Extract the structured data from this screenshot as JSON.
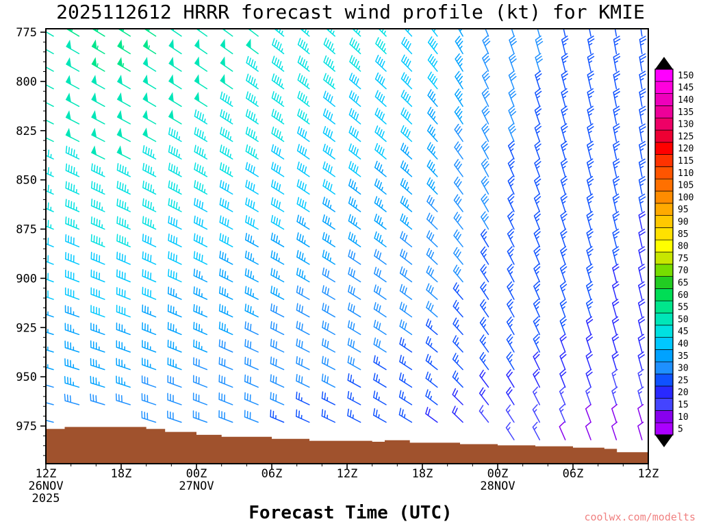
{
  "title": "2025112612 HRRR forecast wind profile (kt) for KMIE",
  "x_axis_title": "Forecast Time (UTC)",
  "watermark": "coolwx.com/modelts",
  "chart_data": {
    "type": "wind-barb-time-height",
    "model": "HRRR",
    "init_time_utc": "2025112612",
    "station": "KMIE",
    "units": "kt",
    "time_axis": {
      "hours_range": [
        0,
        48
      ],
      "ticks": [
        {
          "hour": 0,
          "label": "12Z",
          "date": "26NOV",
          "year": "2025"
        },
        {
          "hour": 6,
          "label": "18Z"
        },
        {
          "hour": 12,
          "label": "00Z",
          "date": "27NOV"
        },
        {
          "hour": 18,
          "label": "06Z"
        },
        {
          "hour": 24,
          "label": "12Z"
        },
        {
          "hour": 30,
          "label": "18Z"
        },
        {
          "hour": 36,
          "label": "00Z",
          "date": "28NOV"
        },
        {
          "hour": 42,
          "label": "06Z"
        },
        {
          "hour": 48,
          "label": "12Z"
        }
      ],
      "minor_step_hours": 2
    },
    "pressure_axis": {
      "ticks_hpa": [
        775,
        800,
        825,
        850,
        875,
        900,
        925,
        950,
        975
      ],
      "minor_step_hpa": 5,
      "top_hpa": 773,
      "bottom_hpa": 994
    },
    "sample_times_hours": [
      0,
      6,
      12,
      18,
      24,
      30,
      36,
      42,
      48
    ],
    "sample_levels_hpa": [
      775,
      800,
      825,
      850,
      875,
      900,
      925,
      950,
      975
    ],
    "wind_speed_kt": [
      [
        52,
        55,
        52,
        48,
        45,
        42,
        30,
        27,
        25
      ],
      [
        50,
        53,
        50,
        46,
        43,
        40,
        29,
        26,
        25
      ],
      [
        48,
        50,
        47,
        44,
        41,
        38,
        28,
        26,
        24
      ],
      [
        46,
        47,
        44,
        41,
        38,
        35,
        28,
        25,
        23
      ],
      [
        43,
        44,
        41,
        38,
        35,
        33,
        27,
        25,
        22
      ],
      [
        39,
        41,
        38,
        35,
        32,
        30,
        26,
        24,
        21
      ],
      [
        36,
        37,
        35,
        32,
        30,
        28,
        25,
        23,
        20
      ],
      [
        33,
        34,
        32,
        30,
        28,
        26,
        23,
        21,
        17
      ],
      [
        29,
        31,
        29,
        27,
        25,
        23,
        15,
        12,
        9
      ]
    ],
    "wind_dir_deg": [
      [
        300,
        302,
        305,
        308,
        312,
        318,
        340,
        348,
        352
      ],
      [
        298,
        300,
        303,
        306,
        310,
        316,
        338,
        346,
        350
      ],
      [
        296,
        298,
        301,
        304,
        308,
        314,
        336,
        345,
        350
      ],
      [
        294,
        296,
        299,
        302,
        306,
        312,
        334,
        344,
        349
      ],
      [
        292,
        294,
        297,
        300,
        304,
        310,
        332,
        343,
        348
      ],
      [
        290,
        292,
        295,
        298,
        302,
        308,
        330,
        342,
        347
      ],
      [
        288,
        290,
        293,
        296,
        300,
        306,
        328,
        341,
        346
      ],
      [
        286,
        288,
        291,
        294,
        298,
        304,
        326,
        340,
        345
      ],
      [
        284,
        286,
        289,
        292,
        296,
        302,
        324,
        338,
        344
      ]
    ],
    "terrain": {
      "color": "#a0522d",
      "profile_hour_pressure": [
        [
          0,
          976.5
        ],
        [
          1.5,
          975.5
        ],
        [
          8,
          976.5
        ],
        [
          9.5,
          978
        ],
        [
          12,
          979.5
        ],
        [
          14,
          980.5
        ],
        [
          18,
          981.5
        ],
        [
          21,
          982.5
        ],
        [
          26,
          983
        ],
        [
          27,
          982.2
        ],
        [
          29,
          983.5
        ],
        [
          33,
          984.2
        ],
        [
          36,
          984.8
        ],
        [
          39,
          985.3
        ],
        [
          42,
          986
        ],
        [
          44.5,
          986.6
        ],
        [
          45.5,
          988.3
        ],
        [
          48,
          988.3
        ]
      ]
    },
    "colorbar": {
      "min": 5,
      "max": 150,
      "step": 5,
      "tick_labels": [
        5,
        10,
        15,
        20,
        25,
        30,
        35,
        40,
        45,
        50,
        55,
        60,
        65,
        70,
        75,
        80,
        85,
        90,
        95,
        100,
        105,
        110,
        115,
        120,
        125,
        130,
        135,
        140,
        145,
        150
      ],
      "colors": [
        "#aa00ff",
        "#8800ee",
        "#4444ff",
        "#2929ff",
        "#0f52ff",
        "#1e90ff",
        "#00a2ff",
        "#00c8ff",
        "#00e1e1",
        "#00e6b8",
        "#00e68c",
        "#00dd55",
        "#22cc22",
        "#77dd00",
        "#c8e600",
        "#ffff00",
        "#ffe100",
        "#ffc800",
        "#ffaa00",
        "#ff8c00",
        "#ff7000",
        "#ff5500",
        "#ff3300",
        "#ff0000",
        "#ee0033",
        "#ee0066",
        "#ee0099",
        "#ee00bb",
        "#ff00dd",
        "#ff00ff"
      ]
    },
    "barb_grid": {
      "n_time_columns": 24,
      "time_first_hour": 0.6,
      "time_last_hour": 47.5,
      "n_levels": 24,
      "level_first_hpa": 777,
      "level_last_hpa": 982
    }
  }
}
